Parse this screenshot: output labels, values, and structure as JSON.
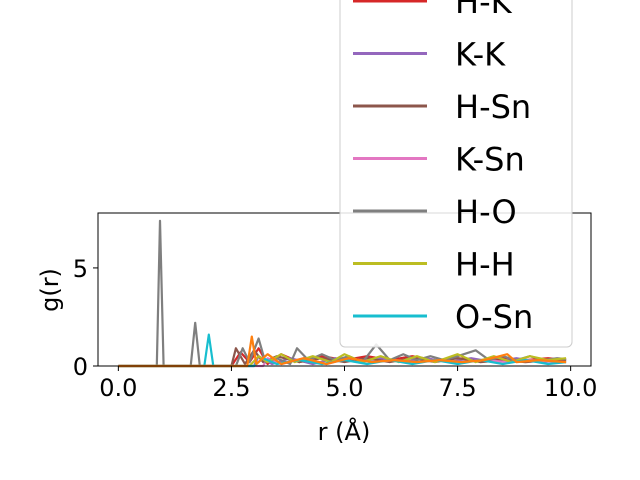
{
  "chart_data": {
    "type": "line",
    "xlabel": "r (Å)",
    "ylabel": "g(r)",
    "xlim": [
      -0.45,
      10.45
    ],
    "ylim": [
      0,
      7.8
    ],
    "x_ticks": [
      "0.0",
      "2.5",
      "5.0",
      "7.5",
      "10.0"
    ],
    "x_tick_values": [
      0.0,
      2.5,
      5.0,
      7.5,
      10.0
    ],
    "y_ticks": [
      "0",
      "5"
    ],
    "y_tick_values": [
      0,
      5
    ],
    "legend_placement": "upper-right (extends above plot)",
    "series": [
      {
        "name": "H-K",
        "color": "#d62728",
        "points": [
          [
            0,
            0
          ],
          [
            2.5,
            0
          ],
          [
            2.7,
            0.7
          ],
          [
            2.9,
            0.2
          ],
          [
            3.1,
            0.9
          ],
          [
            3.3,
            0.1
          ],
          [
            3.6,
            0.6
          ],
          [
            4.0,
            0.2
          ],
          [
            4.5,
            0.5
          ],
          [
            5.0,
            0.3
          ],
          [
            5.5,
            0.5
          ],
          [
            6.0,
            0.3
          ],
          [
            6.5,
            0.5
          ],
          [
            7.0,
            0.3
          ],
          [
            7.5,
            0.4
          ],
          [
            8.0,
            0.3
          ],
          [
            8.5,
            0.4
          ],
          [
            9.0,
            0.3
          ],
          [
            9.5,
            0.4
          ],
          [
            9.9,
            0.3
          ]
        ]
      },
      {
        "name": "K-K",
        "color": "#9467bd",
        "points": [
          [
            0,
            0
          ],
          [
            3.0,
            0
          ],
          [
            3.1,
            0.5
          ],
          [
            3.4,
            0.1
          ],
          [
            3.8,
            0.4
          ],
          [
            4.3,
            0.1
          ],
          [
            4.8,
            0.4
          ],
          [
            5.3,
            0.2
          ],
          [
            5.8,
            0.4
          ],
          [
            6.3,
            0.2
          ],
          [
            6.8,
            0.4
          ],
          [
            7.3,
            0.2
          ],
          [
            7.8,
            0.4
          ],
          [
            8.3,
            0.2
          ],
          [
            8.8,
            0.4
          ],
          [
            9.3,
            0.2
          ],
          [
            9.9,
            0.3
          ]
        ]
      },
      {
        "name": "H-Sn",
        "color": "#8c564b",
        "points": [
          [
            0,
            0
          ],
          [
            2.5,
            0
          ],
          [
            2.6,
            0.9
          ],
          [
            2.8,
            0.1
          ],
          [
            3.0,
            0.8
          ],
          [
            3.2,
            0.2
          ],
          [
            3.5,
            0.5
          ],
          [
            4.0,
            0.2
          ],
          [
            4.5,
            0.4
          ],
          [
            5.0,
            0.2
          ],
          [
            5.5,
            0.4
          ],
          [
            6.0,
            0.2
          ],
          [
            6.5,
            0.4
          ],
          [
            7.0,
            0.2
          ],
          [
            7.5,
            0.4
          ],
          [
            8.0,
            0.2
          ],
          [
            8.5,
            0.3
          ],
          [
            9.0,
            0.2
          ],
          [
            9.5,
            0.3
          ],
          [
            9.9,
            0.3
          ]
        ]
      },
      {
        "name": "K-Sn",
        "color": "#e377c2",
        "points": [
          [
            0,
            0
          ],
          [
            3.2,
            0
          ],
          [
            3.3,
            0.4
          ],
          [
            3.6,
            0.1
          ],
          [
            4.1,
            0.4
          ],
          [
            4.6,
            0.1
          ],
          [
            5.1,
            0.4
          ],
          [
            5.6,
            0.2
          ],
          [
            6.1,
            0.3
          ],
          [
            6.6,
            0.2
          ],
          [
            7.1,
            0.3
          ],
          [
            7.6,
            0.2
          ],
          [
            8.1,
            0.3
          ],
          [
            8.6,
            0.2
          ],
          [
            9.1,
            0.3
          ],
          [
            9.9,
            0.2
          ]
        ]
      },
      {
        "name": "H-O",
        "color": "#7f7f7f",
        "points": [
          [
            0,
            0
          ],
          [
            0.85,
            0
          ],
          [
            0.92,
            7.4
          ],
          [
            1.0,
            0
          ],
          [
            1.6,
            0
          ],
          [
            1.7,
            2.2
          ],
          [
            1.8,
            0
          ],
          [
            2.6,
            0
          ],
          [
            2.75,
            0.9
          ],
          [
            2.9,
            0.2
          ],
          [
            3.1,
            1.4
          ],
          [
            3.25,
            0.2
          ],
          [
            3.5,
            0.4
          ],
          [
            3.8,
            0.1
          ],
          [
            3.95,
            0.9
          ],
          [
            4.2,
            0.3
          ],
          [
            4.5,
            0.6
          ],
          [
            4.8,
            0.3
          ],
          [
            5.1,
            0.5
          ],
          [
            5.4,
            0.2
          ],
          [
            5.7,
            1.1
          ],
          [
            6.0,
            0.3
          ],
          [
            6.3,
            0.6
          ],
          [
            6.6,
            0.3
          ],
          [
            6.9,
            0.5
          ],
          [
            7.2,
            0.3
          ],
          [
            7.5,
            0.5
          ],
          [
            7.9,
            0.8
          ],
          [
            8.2,
            0.3
          ],
          [
            8.5,
            0.5
          ],
          [
            8.8,
            0.3
          ],
          [
            9.1,
            0.5
          ],
          [
            9.4,
            0.3
          ],
          [
            9.7,
            0.4
          ],
          [
            9.9,
            0.35
          ]
        ]
      },
      {
        "name": "H-H",
        "color": "#bcbd22",
        "points": [
          [
            0,
            0
          ],
          [
            2.9,
            0
          ],
          [
            3.1,
            0.5
          ],
          [
            3.3,
            0.2
          ],
          [
            3.6,
            0.6
          ],
          [
            3.9,
            0.2
          ],
          [
            4.3,
            0.5
          ],
          [
            4.7,
            0.2
          ],
          [
            5.0,
            0.6
          ],
          [
            5.4,
            0.2
          ],
          [
            5.8,
            0.5
          ],
          [
            6.2,
            0.2
          ],
          [
            6.6,
            0.5
          ],
          [
            7.0,
            0.2
          ],
          [
            7.5,
            0.6
          ],
          [
            7.9,
            0.2
          ],
          [
            8.3,
            0.5
          ],
          [
            8.7,
            0.2
          ],
          [
            9.1,
            0.5
          ],
          [
            9.5,
            0.3
          ],
          [
            9.9,
            0.4
          ]
        ]
      },
      {
        "name": "O-Sn",
        "color": "#17becf",
        "points": [
          [
            0,
            0
          ],
          [
            1.9,
            0
          ],
          [
            2.0,
            1.6
          ],
          [
            2.1,
            0
          ],
          [
            3.0,
            0
          ],
          [
            3.2,
            0.4
          ],
          [
            3.5,
            0.1
          ],
          [
            4.0,
            0.3
          ],
          [
            4.5,
            0.1
          ],
          [
            5.0,
            0.3
          ],
          [
            5.5,
            0.1
          ],
          [
            6.0,
            0.3
          ],
          [
            6.5,
            0.1
          ],
          [
            7.0,
            0.3
          ],
          [
            7.5,
            0.1
          ],
          [
            8.0,
            0.3
          ],
          [
            8.5,
            0.1
          ],
          [
            9.0,
            0.3
          ],
          [
            9.5,
            0.1
          ],
          [
            9.9,
            0.2
          ]
        ]
      },
      {
        "name": "",
        "color": "#ff7f0e",
        "points": [
          [
            0,
            0
          ],
          [
            2.85,
            0
          ],
          [
            2.95,
            1.5
          ],
          [
            3.05,
            0.1
          ],
          [
            3.3,
            0.6
          ],
          [
            3.6,
            0.1
          ],
          [
            4.1,
            0.4
          ],
          [
            4.6,
            0.1
          ],
          [
            5.1,
            0.4
          ],
          [
            5.6,
            0.2
          ],
          [
            6.1,
            0.3
          ],
          [
            6.6,
            0.2
          ],
          [
            7.1,
            0.3
          ],
          [
            7.6,
            0.2
          ],
          [
            8.1,
            0.3
          ],
          [
            8.6,
            0.6
          ],
          [
            8.8,
            0.2
          ],
          [
            9.3,
            0.3
          ],
          [
            9.9,
            0.2
          ]
        ]
      }
    ]
  }
}
